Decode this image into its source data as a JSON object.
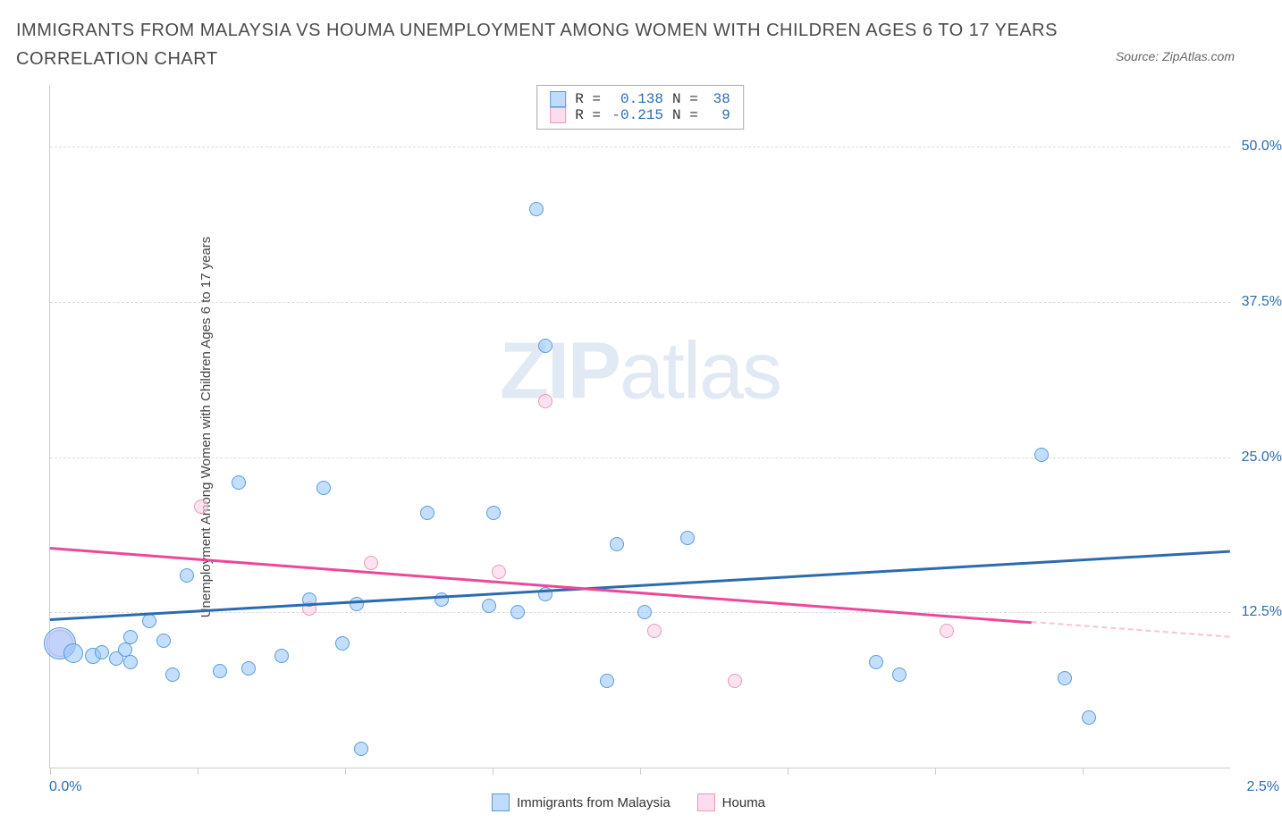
{
  "title": "IMMIGRANTS FROM MALAYSIA VS HOUMA UNEMPLOYMENT AMONG WOMEN WITH CHILDREN AGES 6 TO 17 YEARS CORRELATION CHART",
  "source_label": "Source: ZipAtlas.com",
  "ylabel": "Unemployment Among Women with Children Ages 6 to 17 years",
  "watermark_bold": "ZIP",
  "watermark_light": "atlas",
  "chart": {
    "type": "scatter",
    "background_color": "#ffffff",
    "xlim": [
      0.0,
      2.5
    ],
    "ylim": [
      0,
      55
    ],
    "x_ticks": [
      0.0,
      0.3125,
      0.625,
      0.9375,
      1.25,
      1.5625,
      1.875,
      2.1875
    ],
    "x_tick_label_left": "0.0%",
    "x_tick_label_right": "2.5%",
    "y_gridlines": [
      12.5,
      25.0,
      37.5,
      50.0
    ],
    "y_tick_labels": [
      "12.5%",
      "25.0%",
      "37.5%",
      "50.0%"
    ],
    "grid_color": "#dcdcdc",
    "axis_color": "#cccccc",
    "series": {
      "blue": {
        "label": "Immigrants from Malaysia",
        "fill": "rgba(147,197,253,0.55)",
        "stroke": "#5a9cd6",
        "R": "0.138",
        "N": "38",
        "points": [
          {
            "x": 0.02,
            "y": 10.0,
            "size": 36
          },
          {
            "x": 0.05,
            "y": 9.2,
            "size": 22
          },
          {
            "x": 0.09,
            "y": 9.0,
            "size": 18
          },
          {
            "x": 0.11,
            "y": 9.3,
            "size": 16
          },
          {
            "x": 0.14,
            "y": 8.8,
            "size": 16
          },
          {
            "x": 0.16,
            "y": 9.5,
            "size": 16
          },
          {
            "x": 0.17,
            "y": 10.5,
            "size": 16
          },
          {
            "x": 0.17,
            "y": 8.5,
            "size": 16
          },
          {
            "x": 0.21,
            "y": 11.8,
            "size": 16
          },
          {
            "x": 0.24,
            "y": 10.2,
            "size": 16
          },
          {
            "x": 0.26,
            "y": 7.5,
            "size": 16
          },
          {
            "x": 0.29,
            "y": 15.5,
            "size": 16
          },
          {
            "x": 0.36,
            "y": 7.8,
            "size": 16
          },
          {
            "x": 0.4,
            "y": 23.0,
            "size": 16
          },
          {
            "x": 0.42,
            "y": 8.0,
            "size": 16
          },
          {
            "x": 0.49,
            "y": 9.0,
            "size": 16
          },
          {
            "x": 0.55,
            "y": 13.5,
            "size": 16
          },
          {
            "x": 0.58,
            "y": 22.5,
            "size": 16
          },
          {
            "x": 0.62,
            "y": 10.0,
            "size": 16
          },
          {
            "x": 0.65,
            "y": 13.2,
            "size": 16
          },
          {
            "x": 0.66,
            "y": 1.5,
            "size": 16
          },
          {
            "x": 0.8,
            "y": 20.5,
            "size": 16
          },
          {
            "x": 0.83,
            "y": 13.5,
            "size": 16
          },
          {
            "x": 0.93,
            "y": 13.0,
            "size": 16
          },
          {
            "x": 0.94,
            "y": 20.5,
            "size": 16
          },
          {
            "x": 0.99,
            "y": 12.5,
            "size": 16
          },
          {
            "x": 1.03,
            "y": 45.0,
            "size": 16
          },
          {
            "x": 1.05,
            "y": 34.0,
            "size": 16
          },
          {
            "x": 1.05,
            "y": 14.0,
            "size": 16
          },
          {
            "x": 1.18,
            "y": 7.0,
            "size": 16
          },
          {
            "x": 1.2,
            "y": 18.0,
            "size": 16
          },
          {
            "x": 1.26,
            "y": 12.5,
            "size": 16
          },
          {
            "x": 1.35,
            "y": 18.5,
            "size": 16
          },
          {
            "x": 1.75,
            "y": 8.5,
            "size": 16
          },
          {
            "x": 1.8,
            "y": 7.5,
            "size": 16
          },
          {
            "x": 2.1,
            "y": 25.2,
            "size": 16
          },
          {
            "x": 2.15,
            "y": 7.2,
            "size": 16
          },
          {
            "x": 2.2,
            "y": 4.0,
            "size": 16
          }
        ],
        "regression": {
          "x1": 0.0,
          "y1": 12.0,
          "x2": 2.5,
          "y2": 17.5,
          "color": "#2b6cb0",
          "width": 2.5
        }
      },
      "pink": {
        "label": "Houma",
        "fill": "rgba(251,207,232,0.6)",
        "stroke": "#e89bb5",
        "R": "-0.215",
        "N": "9",
        "points": [
          {
            "x": 0.02,
            "y": 10.0,
            "size": 30
          },
          {
            "x": 0.32,
            "y": 21.0,
            "size": 16
          },
          {
            "x": 0.55,
            "y": 12.8,
            "size": 16
          },
          {
            "x": 0.68,
            "y": 16.5,
            "size": 16
          },
          {
            "x": 0.95,
            "y": 15.8,
            "size": 16
          },
          {
            "x": 1.05,
            "y": 29.5,
            "size": 16
          },
          {
            "x": 1.28,
            "y": 11.0,
            "size": 16
          },
          {
            "x": 1.45,
            "y": 7.0,
            "size": 16
          },
          {
            "x": 1.9,
            "y": 11.0,
            "size": 16
          }
        ],
        "regression": {
          "x1": 0.0,
          "y1": 17.8,
          "x2": 2.08,
          "y2": 11.8,
          "color": "#ec4899",
          "width": 2.5
        },
        "regression_ext": {
          "x1": 2.08,
          "y1": 11.8,
          "x2": 2.5,
          "y2": 10.6
        }
      }
    }
  },
  "stats": {
    "r_label": "R =",
    "n_label": "N ="
  },
  "legend": {
    "blue": "Immigrants from Malaysia",
    "pink": "Houma"
  }
}
